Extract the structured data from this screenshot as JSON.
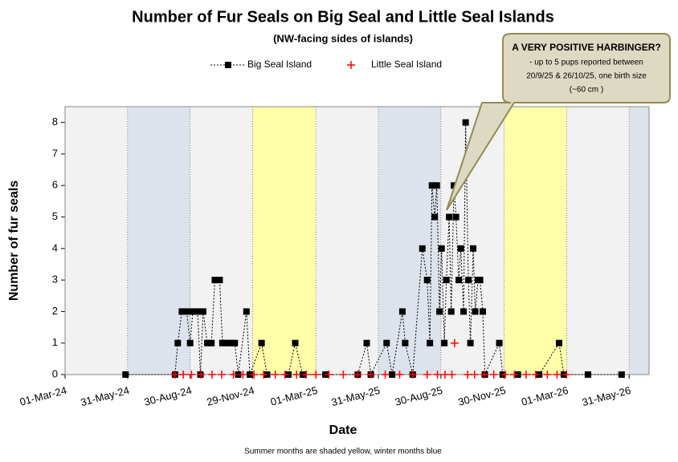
{
  "chart_data": {
    "type": "line",
    "title": "Number of Fur Seals on Big Seal and Little Seal Islands",
    "subtitle": "(NW-facing sides of islands)",
    "x_label": "Date",
    "y_label": "Number of fur seals",
    "footnote": "Summer months are shaded yellow, winter months blue",
    "annotation": {
      "lines": [
        "A  VERY POSITIVE HARBINGER?",
        "- up to 5 pups reported between",
        "20/9/25 & 26/10/25, one birth size",
        "(~60 cm )"
      ]
    },
    "xlim": [
      "2024-03-01",
      "2026-06-29"
    ],
    "xticks": [
      {
        "value": "2024-03-01",
        "label": "01-Mar-24"
      },
      {
        "value": "2024-05-31",
        "label": "31-May-24"
      },
      {
        "value": "2024-08-30",
        "label": "30-Aug-24"
      },
      {
        "value": "2024-11-29",
        "label": "29-Nov-24"
      },
      {
        "value": "2025-03-01",
        "label": "01-Mar-25"
      },
      {
        "value": "2025-05-31",
        "label": "31-May-25"
      },
      {
        "value": "2025-08-30",
        "label": "30-Aug-25"
      },
      {
        "value": "2025-11-30",
        "label": "30-Nov-25"
      },
      {
        "value": "2026-03-01",
        "label": "01-Mar-26"
      },
      {
        "value": "2026-05-31",
        "label": "31-May-26"
      }
    ],
    "ylim": [
      0,
      8.5
    ],
    "yticks": [
      0,
      1,
      2,
      3,
      4,
      5,
      6,
      7,
      8
    ],
    "background": "#f2f2f2",
    "shading": [
      {
        "start": "2024-05-31",
        "end": "2024-08-30",
        "color": "#dde3ec"
      },
      {
        "start": "2024-11-29",
        "end": "2025-03-01",
        "color": "#ffffaa"
      },
      {
        "start": "2025-05-31",
        "end": "2025-08-30",
        "color": "#dde3ec"
      },
      {
        "start": "2025-11-30",
        "end": "2026-03-01",
        "color": "#ffffaa"
      },
      {
        "start": "2026-05-31",
        "end": "2026-06-29",
        "color": "#dde3ec"
      }
    ],
    "series": [
      {
        "name": "Big Seal Island",
        "color": "#000000",
        "marker": "square",
        "line": true,
        "x": [
          "2024-05-28",
          "2024-08-08",
          "2024-08-12",
          "2024-08-18",
          "2024-08-25",
          "2024-08-30",
          "2024-09-03",
          "2024-09-10",
          "2024-09-14",
          "2024-09-18",
          "2024-09-24",
          "2024-09-30",
          "2024-10-05",
          "2024-10-12",
          "2024-10-16",
          "2024-10-22",
          "2024-10-28",
          "2024-11-03",
          "2024-11-08",
          "2024-11-20",
          "2024-11-25",
          "2024-12-12",
          "2024-12-20",
          "2025-01-20",
          "2025-01-30",
          "2025-02-10",
          "2025-03-15",
          "2025-05-01",
          "2025-05-14",
          "2025-05-20",
          "2025-06-12",
          "2025-06-20",
          "2025-07-05",
          "2025-07-09",
          "2025-07-20",
          "2025-08-03",
          "2025-08-10",
          "2025-08-14",
          "2025-08-17",
          "2025-08-21",
          "2025-08-24",
          "2025-08-28",
          "2025-08-31",
          "2025-09-04",
          "2025-09-07",
          "2025-09-11",
          "2025-09-14",
          "2025-09-18",
          "2025-09-21",
          "2025-09-25",
          "2025-09-28",
          "2025-10-02",
          "2025-10-05",
          "2025-10-09",
          "2025-10-12",
          "2025-10-16",
          "2025-10-19",
          "2025-10-23",
          "2025-10-26",
          "2025-10-30",
          "2025-11-02",
          "2025-11-23",
          "2025-11-28",
          "2025-12-20",
          "2026-01-20",
          "2026-02-18",
          "2026-02-25",
          "2026-04-01",
          "2026-05-20"
        ],
        "values": [
          0,
          0,
          1,
          2,
          2,
          1,
          2,
          2,
          0,
          2,
          1,
          1,
          3,
          3,
          1,
          1,
          1,
          1,
          0,
          2,
          0,
          1,
          0,
          0,
          1,
          0,
          0,
          0,
          1,
          0,
          1,
          0,
          2,
          1,
          0,
          4,
          3,
          1,
          6,
          5,
          6,
          2,
          4,
          1,
          3,
          5,
          2,
          6,
          5,
          3,
          4,
          2,
          8,
          3,
          1,
          4,
          2,
          3,
          3,
          2,
          0,
          1,
          0,
          0,
          0,
          1,
          0,
          0,
          0
        ]
      },
      {
        "name": "Little Seal Island",
        "color": "#ff0000",
        "marker": "plus",
        "line": false,
        "x": [
          "2024-08-08",
          "2024-08-20",
          "2024-09-01",
          "2024-09-15",
          "2024-10-01",
          "2024-10-15",
          "2024-11-01",
          "2024-11-15",
          "2024-12-01",
          "2024-12-15",
          "2025-01-01",
          "2025-01-15",
          "2025-02-01",
          "2025-02-15",
          "2025-03-01",
          "2025-03-20",
          "2025-04-10",
          "2025-05-01",
          "2025-05-20",
          "2025-06-10",
          "2025-07-01",
          "2025-07-20",
          "2025-08-10",
          "2025-08-25",
          "2025-09-05",
          "2025-09-15",
          "2025-09-19",
          "2025-10-08",
          "2025-10-18",
          "2025-11-01",
          "2025-11-15",
          "2025-12-01",
          "2025-12-15",
          "2026-01-01",
          "2026-01-15",
          "2026-02-01",
          "2026-02-15",
          "2026-03-01"
        ],
        "values": [
          0,
          0,
          0,
          0,
          0,
          0,
          0,
          0,
          0,
          0,
          0,
          0,
          0,
          0,
          0,
          0,
          0,
          0,
          0,
          0,
          0,
          0,
          0,
          0,
          0,
          0,
          1,
          0,
          0,
          0,
          0,
          0,
          0,
          0,
          0,
          0,
          0,
          0
        ]
      }
    ]
  }
}
